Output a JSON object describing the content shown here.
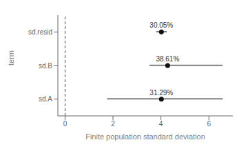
{
  "chart_data": {
    "type": "interval",
    "categories": [
      "sd.resid",
      "sd.B",
      "sd.A"
    ],
    "values": [
      4.02,
      4.28,
      4.02
    ],
    "ci_low": [
      3.8,
      3.52,
      1.75
    ],
    "ci_high": [
      4.24,
      6.58,
      6.58
    ],
    "annotations": [
      "30.05%",
      "38.61%",
      "31.29%"
    ],
    "xlabel": "Finite population standard deviation",
    "ylabel": "term",
    "xlim": [
      -0.3,
      7.0
    ],
    "xticks": [
      0,
      2,
      4,
      6
    ],
    "vline": 0,
    "grid": false
  }
}
